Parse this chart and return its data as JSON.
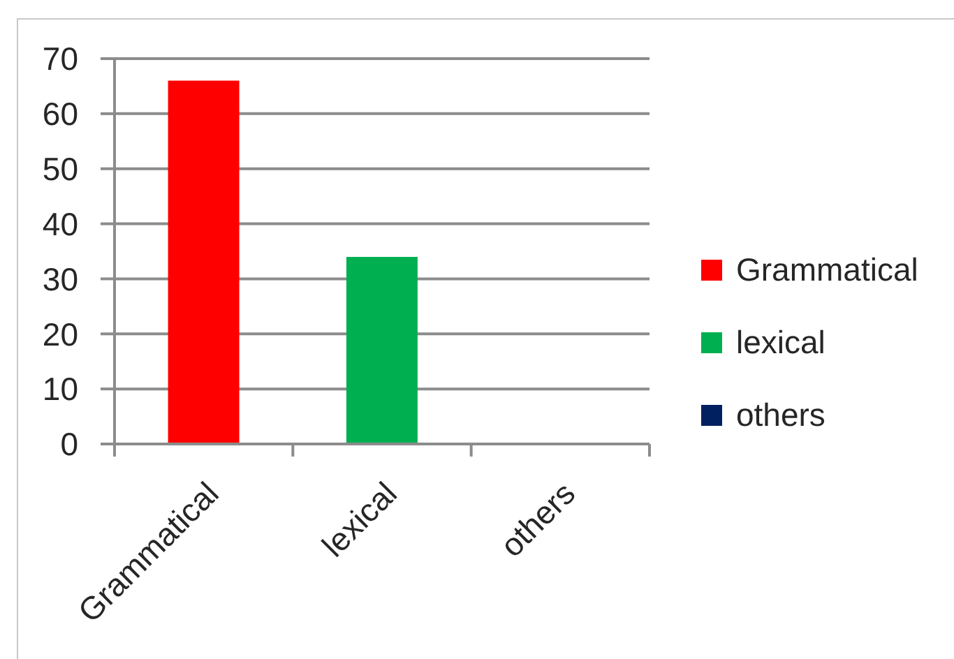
{
  "chart_data": {
    "type": "bar",
    "categories": [
      "Grammatical",
      "lexical",
      "others"
    ],
    "stacked": true,
    "series": [
      {
        "name": "Grammatical",
        "color": "#ff0000",
        "values": [
          66,
          null,
          null
        ]
      },
      {
        "name": "lexical",
        "color": "#00b050",
        "values": [
          null,
          34,
          null
        ]
      },
      {
        "name": "others",
        "color": "#002060",
        "values": [
          null,
          null,
          0
        ]
      }
    ],
    "ylim": [
      0,
      70
    ],
    "yticks": [
      0,
      10,
      20,
      30,
      40,
      50,
      60,
      70
    ],
    "grid": "y",
    "legend": "right"
  }
}
